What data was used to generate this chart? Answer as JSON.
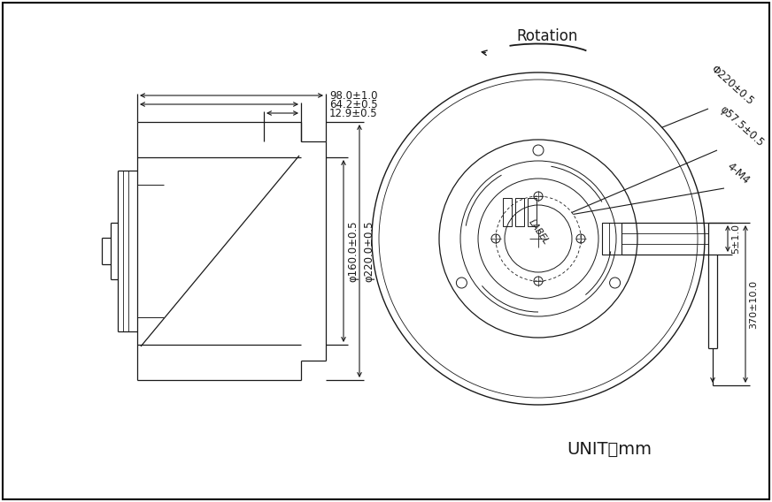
{
  "bg_color": "#ffffff",
  "line_color": "#1a1a1a",
  "unit_label": "UNIT：mm",
  "rotation_label": "Rotation",
  "label_label": "LABEL",
  "dims_top": [
    "98.0±1.0",
    "64.2±0.5",
    "12.9±0.5"
  ],
  "dims_right_vert": [
    "φ160.0±0.5",
    "φ220.0±0.5"
  ],
  "dims_front": [
    "Φ220±0.5",
    "φ57.5±0.5",
    "4-M4"
  ],
  "dim_wire": [
    "5±1.0",
    "370±10.0"
  ]
}
